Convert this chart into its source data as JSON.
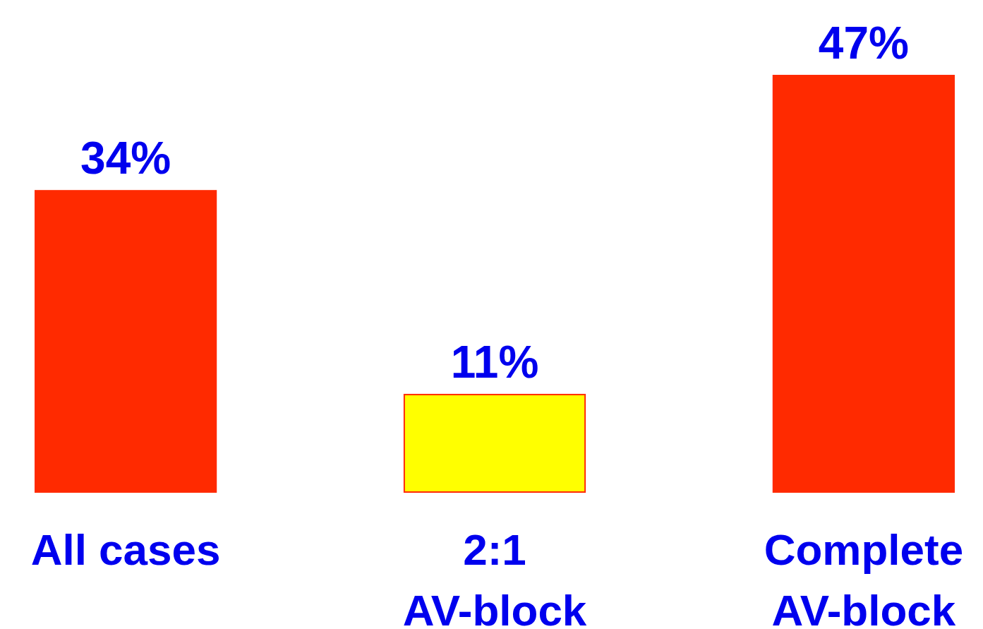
{
  "chart_data": {
    "type": "bar",
    "categories": [
      "All cases",
      "2:1\nAV-block",
      "Complete\nAV-block"
    ],
    "values": [
      34,
      11,
      47
    ],
    "colors": [
      "#ff2a00",
      "#ffff00",
      "#ff2a00"
    ],
    "data_labels": true,
    "value_labels": [
      "34%",
      "11%",
      "47%"
    ]
  }
}
